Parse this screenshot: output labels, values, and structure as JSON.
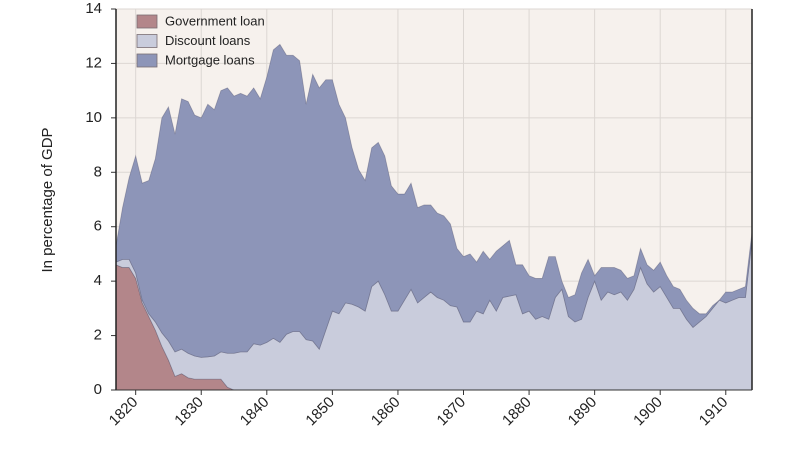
{
  "chart_data": {
    "type": "stacked_area",
    "y_label": "In percentage of GDP",
    "x": [
      1817,
      1818,
      1819,
      1820,
      1821,
      1822,
      1823,
      1824,
      1825,
      1826,
      1827,
      1828,
      1829,
      1830,
      1831,
      1832,
      1833,
      1834,
      1835,
      1836,
      1837,
      1838,
      1839,
      1840,
      1841,
      1842,
      1843,
      1844,
      1845,
      1846,
      1847,
      1848,
      1849,
      1850,
      1851,
      1852,
      1853,
      1854,
      1855,
      1856,
      1857,
      1858,
      1859,
      1860,
      1861,
      1862,
      1863,
      1864,
      1865,
      1866,
      1867,
      1868,
      1869,
      1870,
      1871,
      1872,
      1873,
      1874,
      1875,
      1876,
      1877,
      1878,
      1879,
      1880,
      1881,
      1882,
      1883,
      1884,
      1885,
      1886,
      1887,
      1888,
      1889,
      1890,
      1891,
      1892,
      1893,
      1894,
      1895,
      1896,
      1897,
      1898,
      1899,
      1900,
      1901,
      1902,
      1903,
      1904,
      1905,
      1906,
      1907,
      1908,
      1909,
      1910,
      1911,
      1912,
      1913,
      1914
    ],
    "series": [
      {
        "name": "Government loan",
        "color": "#b3868a",
        "values": [
          4.6,
          4.5,
          4.5,
          4.1,
          3.2,
          2.7,
          2.2,
          1.6,
          1.1,
          0.5,
          0.6,
          0.45,
          0.4,
          0.4,
          0.4,
          0.4,
          0.4,
          0.1,
          0,
          0,
          0,
          0,
          0,
          0,
          0,
          0,
          0,
          0,
          0,
          0,
          0,
          0,
          0,
          0,
          0,
          0,
          0,
          0,
          0,
          0,
          0,
          0,
          0,
          0,
          0,
          0,
          0,
          0,
          0,
          0,
          0,
          0,
          0,
          0,
          0,
          0,
          0,
          0,
          0,
          0,
          0,
          0,
          0,
          0,
          0,
          0,
          0,
          0,
          0,
          0,
          0,
          0,
          0,
          0,
          0,
          0,
          0,
          0,
          0,
          0,
          0,
          0,
          0,
          0,
          0,
          0,
          0,
          0,
          0,
          0,
          0,
          0,
          0,
          0,
          0,
          0,
          0,
          0
        ]
      },
      {
        "name": "Discount loans",
        "color": "#c9ccdc",
        "values": [
          0.1,
          0.3,
          0.3,
          0.2,
          0.1,
          0.1,
          0.3,
          0.5,
          0.7,
          0.9,
          0.9,
          0.9,
          0.85,
          0.8,
          0.82,
          0.85,
          1.0,
          1.25,
          1.35,
          1.4,
          1.4,
          1.7,
          1.65,
          1.75,
          1.9,
          1.75,
          2.05,
          2.15,
          2.15,
          1.85,
          1.8,
          1.5,
          2.2,
          2.9,
          2.8,
          3.2,
          3.15,
          3.05,
          2.9,
          3.8,
          4.0,
          3.5,
          2.9,
          2.9,
          3.3,
          3.7,
          3.2,
          3.4,
          3.6,
          3.4,
          3.3,
          3.1,
          3.05,
          2.5,
          2.5,
          2.9,
          2.8,
          3.3,
          2.9,
          3.4,
          3.45,
          3.5,
          2.8,
          2.9,
          2.6,
          2.7,
          2.6,
          3.4,
          3.7,
          2.7,
          2.5,
          2.6,
          3.4,
          4.0,
          3.3,
          3.6,
          3.5,
          3.6,
          3.3,
          3.7,
          4.5,
          3.9,
          3.6,
          3.8,
          3.4,
          3.0,
          3.0,
          2.6,
          2.3,
          2.5,
          2.7,
          3.0,
          3.3,
          3.2,
          3.3,
          3.4,
          3.4,
          5.5
        ]
      },
      {
        "name": "Mortgage loans",
        "color": "#8d95b8",
        "values": [
          0.6,
          1.9,
          3.0,
          4.3,
          4.3,
          4.9,
          6.0,
          7.9,
          8.6,
          8.0,
          9.2,
          9.25,
          8.85,
          8.8,
          9.28,
          9.05,
          9.6,
          9.75,
          9.45,
          9.5,
          9.4,
          9.4,
          9.05,
          9.75,
          10.6,
          10.95,
          10.25,
          10.15,
          9.95,
          8.65,
          9.8,
          9.6,
          9.2,
          8.5,
          7.7,
          6.8,
          5.75,
          5.05,
          4.8,
          5.1,
          5.1,
          5.1,
          4.6,
          4.3,
          3.9,
          3.9,
          3.5,
          3.4,
          3.2,
          3.1,
          3.1,
          3.0,
          2.15,
          2.4,
          2.5,
          1.8,
          2.3,
          1.5,
          2.2,
          1.9,
          2.05,
          1.1,
          1.8,
          1.3,
          1.5,
          1.4,
          2.3,
          1.5,
          0.3,
          0.7,
          1.0,
          1.7,
          1.4,
          0.2,
          1.2,
          0.9,
          1.0,
          0.8,
          0.8,
          0.5,
          0.7,
          0.7,
          0.8,
          0.9,
          0.8,
          0.8,
          0.7,
          0.7,
          0.7,
          0.3,
          0.1,
          0.1,
          0,
          0.4,
          0.3,
          0.3,
          0.4,
          0.3
        ]
      }
    ],
    "xlim": [
      1817,
      1914
    ],
    "xticks": [
      1820,
      1830,
      1840,
      1850,
      1860,
      1870,
      1880,
      1890,
      1900,
      1910
    ],
    "ylim": [
      0,
      14
    ],
    "yticks": [
      0,
      2,
      4,
      6,
      8,
      10,
      12,
      14
    ],
    "grid": true,
    "legend": "upper left"
  }
}
